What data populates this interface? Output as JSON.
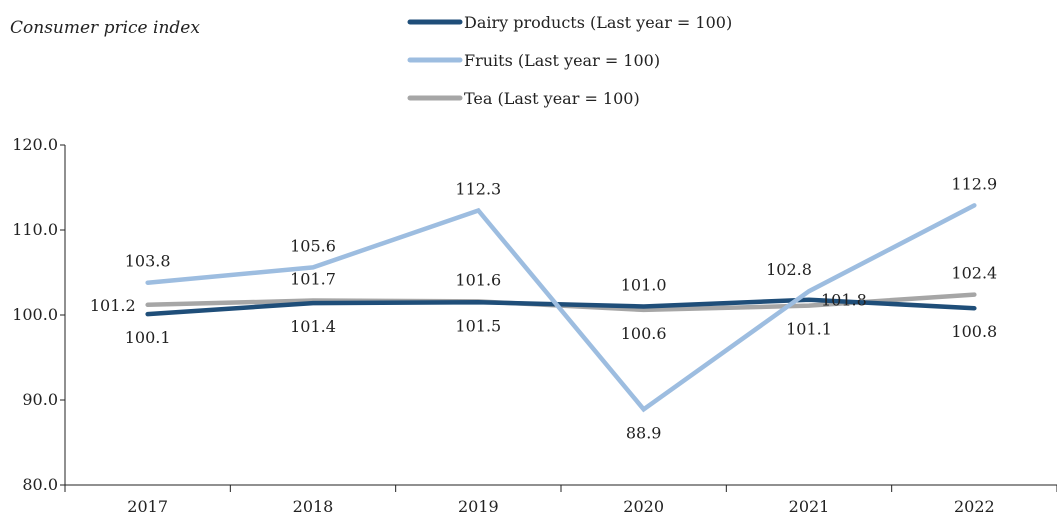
{
  "chart_data": {
    "type": "line",
    "ylabel": "Consumer price index",
    "xlabel": "",
    "ylim": [
      80,
      120
    ],
    "yticks": [
      80,
      90,
      100,
      110,
      120
    ],
    "ytick_labels": [
      "80.0",
      "90.0",
      "100.0",
      "110.0",
      "120.0"
    ],
    "categories": [
      "2017",
      "2018",
      "2019",
      "2020",
      "2021",
      "2022"
    ],
    "series": [
      {
        "name": "Dairy products (Last year = 100)",
        "color": "#1f4e79",
        "values": [
          100.1,
          101.4,
          101.5,
          101.0,
          101.8,
          100.8
        ],
        "labels": [
          "100.1",
          "101.4",
          "101.5",
          "101.0",
          "101.8",
          "100.8"
        ]
      },
      {
        "name": "Fruits (Last year = 100)",
        "color": "#9dbde0",
        "values": [
          103.8,
          105.6,
          112.3,
          88.9,
          102.8,
          112.9
        ],
        "labels": [
          "103.8",
          "105.6",
          "112.3",
          "88.9",
          "102.8",
          "112.9"
        ]
      },
      {
        "name": "Tea (Last year = 100)",
        "color": "#a6a6a6",
        "values": [
          101.2,
          101.7,
          101.6,
          100.6,
          101.1,
          102.4
        ],
        "labels": [
          "101.2",
          "101.7",
          "101.6",
          "100.6",
          "101.1",
          "102.4"
        ]
      }
    ],
    "grid": false,
    "legend": "top-center"
  }
}
